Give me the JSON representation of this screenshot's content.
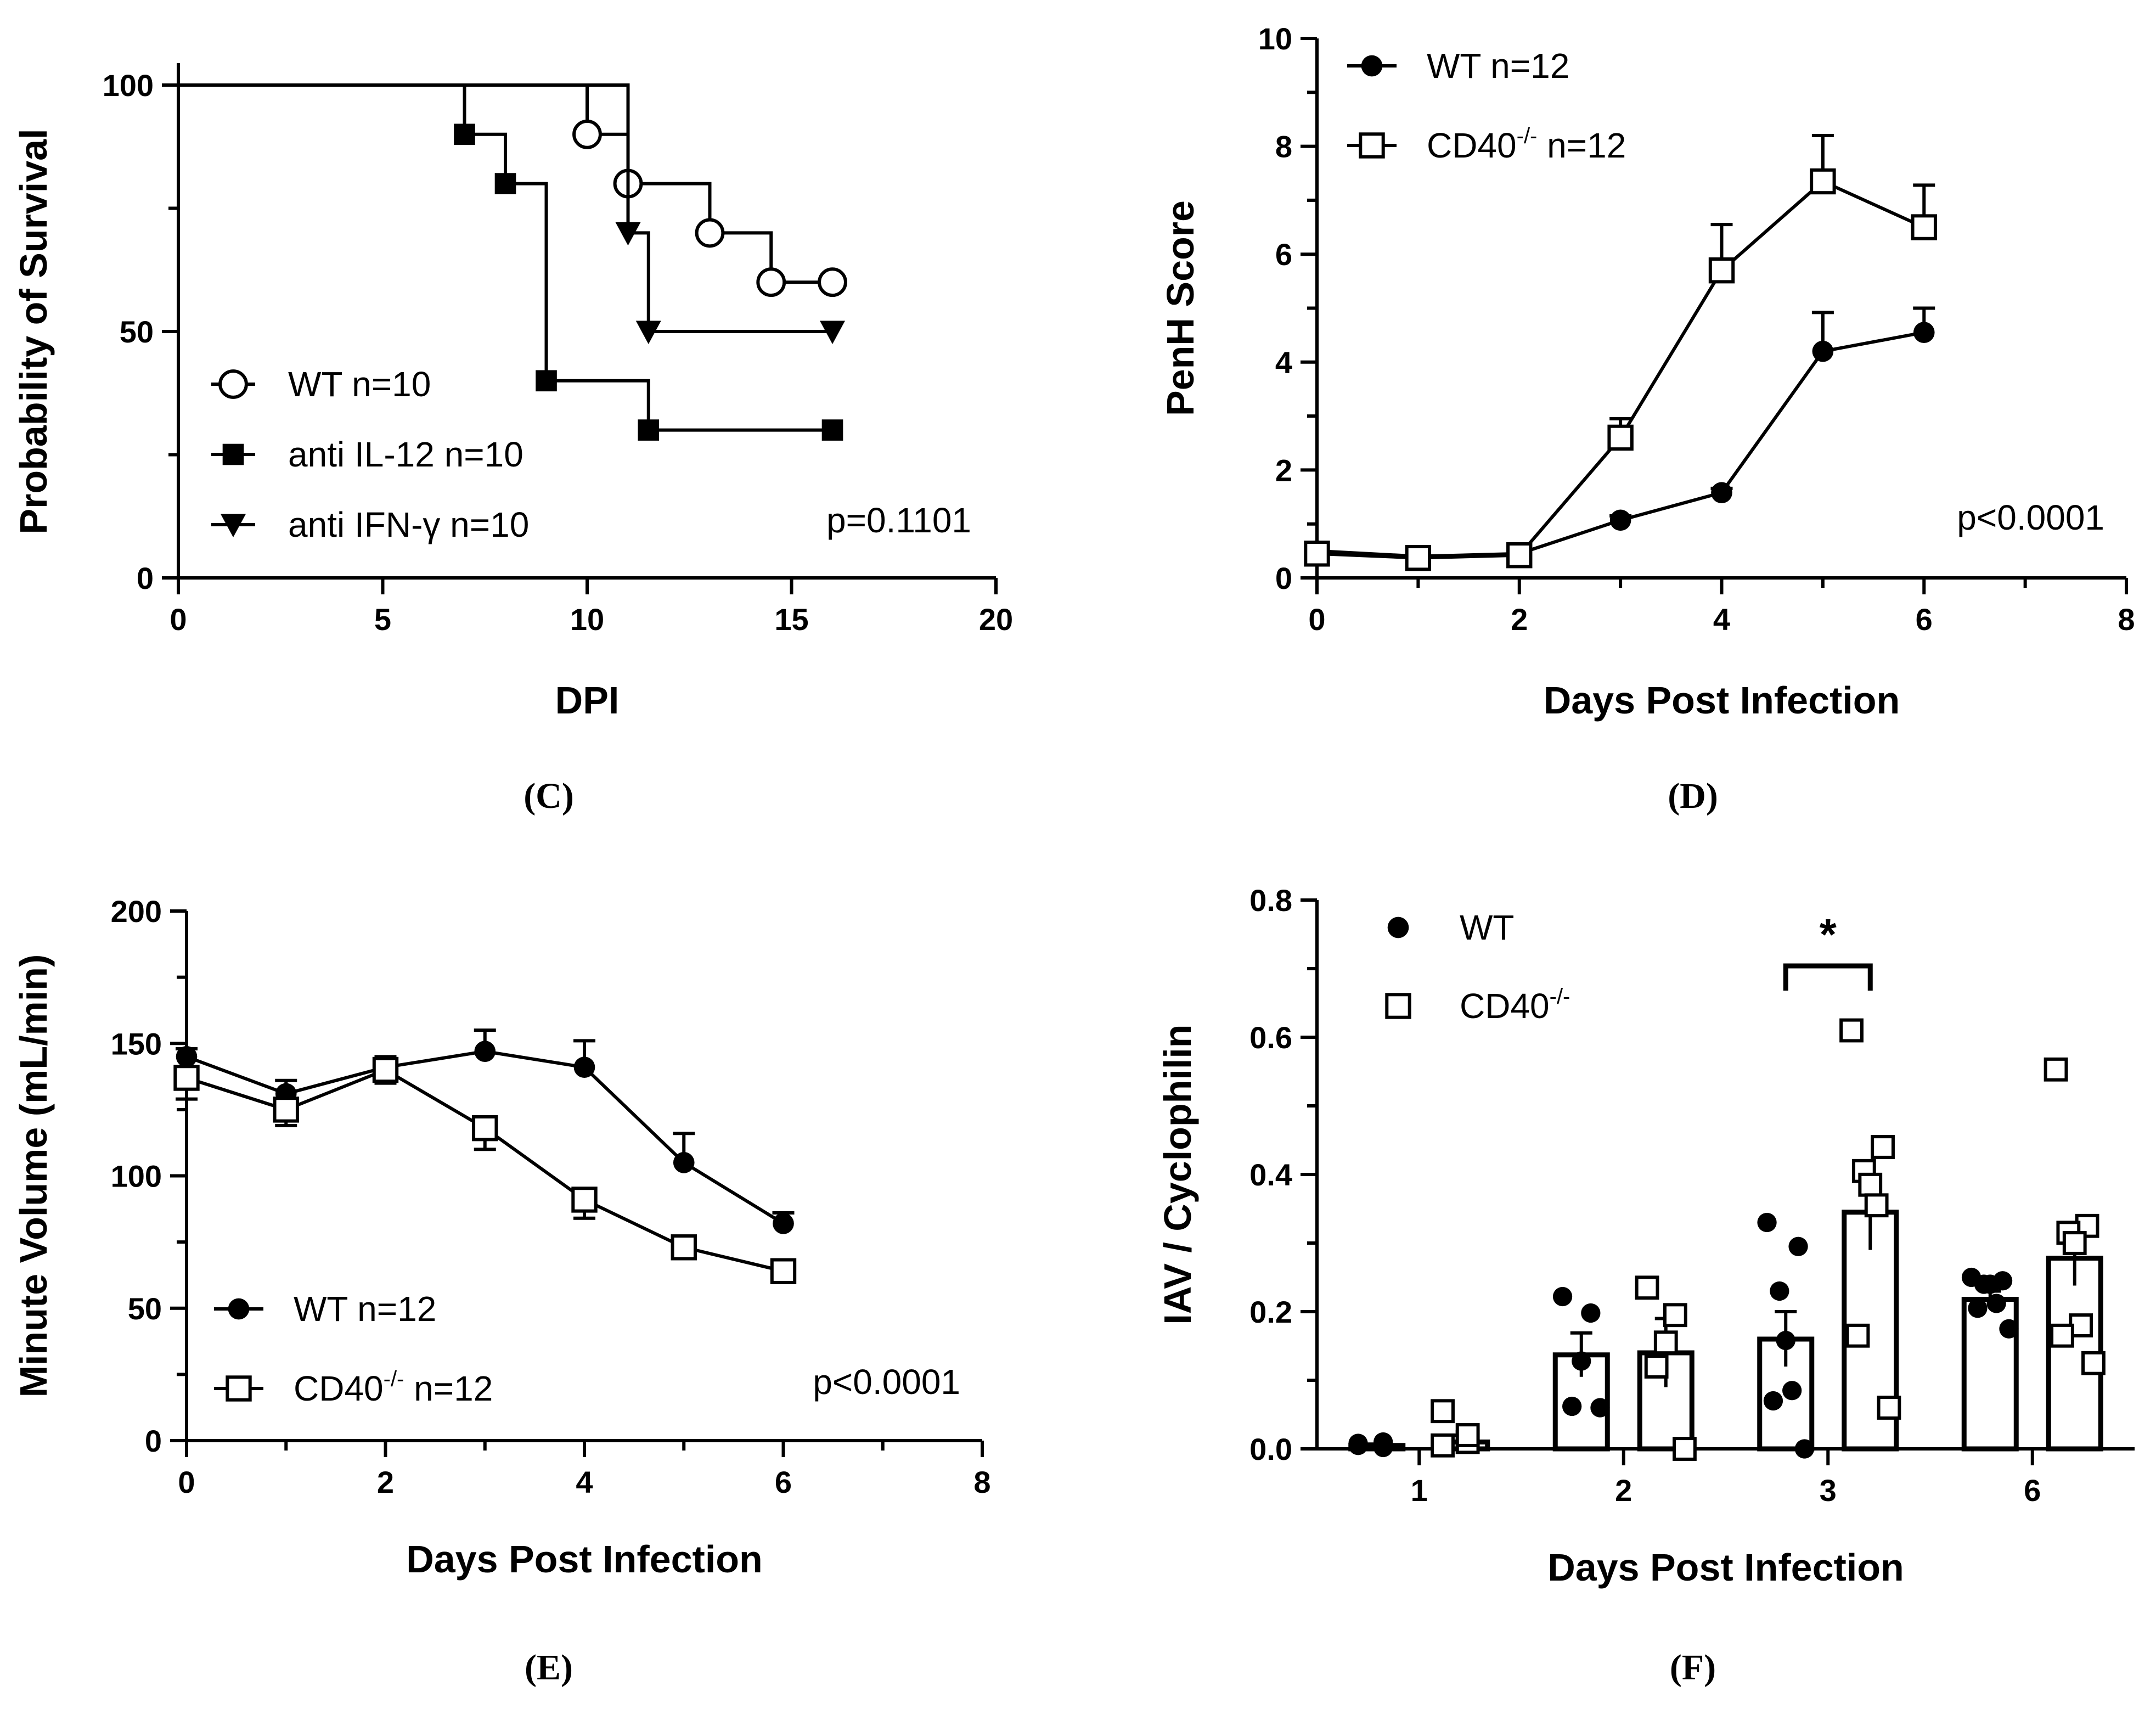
{
  "chart_data": [
    {
      "id": "C",
      "type": "line",
      "subtype": "survival-step",
      "panel_label": "(C)",
      "xlabel": "DPI",
      "ylabel": "Probability of Survival",
      "xlim": [
        0,
        20
      ],
      "ylim": [
        0,
        100
      ],
      "xticks": [
        0,
        5,
        10,
        15,
        20
      ],
      "yticks": [
        0,
        50,
        100
      ],
      "annotation": "p=0.1101",
      "legend_position": "bottom-left",
      "series": [
        {
          "name": "WT n=10",
          "marker": "open-circle",
          "steps": [
            [
              0,
              100
            ],
            [
              10,
              90
            ],
            [
              11,
              80
            ],
            [
              13,
              70
            ],
            [
              14.5,
              60
            ],
            [
              16,
              60
            ]
          ],
          "markers": [
            [
              10,
              90
            ],
            [
              11,
              80
            ],
            [
              13,
              70
            ],
            [
              14.5,
              60
            ],
            [
              16,
              60
            ]
          ]
        },
        {
          "name": "anti IL-12 n=10",
          "marker": "filled-square",
          "steps": [
            [
              0,
              100
            ],
            [
              7,
              90
            ],
            [
              8,
              80
            ],
            [
              9,
              40
            ],
            [
              11.5,
              30
            ],
            [
              16,
              30
            ]
          ],
          "markers": [
            [
              7,
              90
            ],
            [
              8,
              80
            ],
            [
              9,
              40
            ],
            [
              11.5,
              30
            ],
            [
              16,
              30
            ]
          ]
        },
        {
          "name": "anti IFN-γ n=10",
          "marker": "filled-triangle-down",
          "steps": [
            [
              0,
              100
            ],
            [
              11,
              70
            ],
            [
              11.5,
              50
            ],
            [
              16,
              50
            ]
          ],
          "markers": [
            [
              11,
              70
            ],
            [
              11.5,
              50
            ],
            [
              16,
              50
            ]
          ]
        }
      ]
    },
    {
      "id": "D",
      "type": "line",
      "panel_label": "(D)",
      "xlabel": "Days Post Infection",
      "ylabel": "PenH Score",
      "xlim": [
        0,
        8
      ],
      "ylim": [
        0,
        10
      ],
      "xticks": [
        0,
        2,
        4,
        6,
        8
      ],
      "yticks": [
        0,
        2,
        4,
        6,
        8,
        10
      ],
      "annotation": "p<0.0001",
      "legend_position": "top-left",
      "series": [
        {
          "name": "WT n=12",
          "name_main": "WT n=12",
          "name_sup": "",
          "name_tail": "",
          "marker": "filled-circle",
          "x": [
            0,
            1,
            2,
            3,
            4,
            5,
            6
          ],
          "y": [
            0.5,
            0.4,
            0.45,
            1.07,
            1.58,
            4.2,
            4.55
          ],
          "err": [
            0.05,
            0.05,
            0.05,
            0.08,
            0.08,
            0.72,
            0.45
          ]
        },
        {
          "name": "CD40-/- n=12",
          "name_main": "CD40",
          "name_sup": "-/-",
          "name_tail": " n=12",
          "marker": "open-square",
          "x": [
            0,
            1,
            2,
            3,
            4,
            5,
            6
          ],
          "y": [
            0.45,
            0.37,
            0.42,
            2.6,
            5.7,
            7.35,
            6.5
          ],
          "err": [
            0.05,
            0.05,
            0.05,
            0.35,
            0.85,
            0.85,
            0.78
          ]
        }
      ]
    },
    {
      "id": "E",
      "type": "line",
      "panel_label": "(E)",
      "xlabel": "Days Post Infection",
      "ylabel": "Minute Volume (mL/min)",
      "xlim": [
        0,
        8
      ],
      "ylim": [
        0,
        200
      ],
      "xticks": [
        0,
        2,
        4,
        6,
        8
      ],
      "yticks": [
        0,
        50,
        100,
        150,
        200
      ],
      "annotation": "p<0.0001",
      "legend_position": "bottom-left",
      "series": [
        {
          "name": "WT n=12",
          "name_main": "WT n=12",
          "name_sup": "",
          "name_tail": "",
          "marker": "filled-circle",
          "x": [
            0,
            1,
            2,
            3,
            4,
            5,
            6
          ],
          "y": [
            145,
            131,
            141,
            147,
            141,
            105,
            82
          ],
          "err": [
            3,
            5,
            4,
            8,
            10,
            11,
            4
          ]
        },
        {
          "name": "CD40-/- n=12",
          "name_main": "CD40",
          "name_sup": "-/-",
          "name_tail": " n=12",
          "marker": "open-square",
          "x": [
            0,
            1,
            2,
            3,
            4,
            5,
            6
          ],
          "y": [
            137,
            125,
            140,
            118,
            91,
            73,
            64
          ],
          "err": [
            8,
            6,
            5,
            8,
            7,
            3,
            3
          ]
        }
      ]
    },
    {
      "id": "F",
      "type": "bar",
      "subtype": "bar-with-points",
      "panel_label": "(F)",
      "xlabel": "Days Post Infection",
      "ylabel": "IAV / Cyclophilin",
      "ylim": [
        0,
        0.8
      ],
      "yticks": [
        "0.0",
        "0.2",
        "0.4",
        "0.6",
        "0.8"
      ],
      "categories": [
        "1",
        "2",
        "3",
        "6"
      ],
      "significance": {
        "label": "*",
        "category": "3"
      },
      "legend_position": "top-left",
      "series": [
        {
          "name": "WT",
          "name_main": "WT",
          "name_sup": "",
          "marker": "filled-circle",
          "values": [
            0.005,
            0.137,
            0.16,
            0.218
          ],
          "sem": [
            0.002,
            0.032,
            0.04,
            0.012
          ],
          "points": [
            [
              0.008,
              0.002,
              0.01,
              0.005
            ],
            [
              0.222,
              0.198,
              0.128,
              0.062,
              0.06
            ],
            [
              0.33,
              0.295,
              0.23,
              0.158,
              0.085,
              0.07,
              0.0
            ],
            [
              0.25,
              0.245,
              0.24,
              0.24,
              0.212,
              0.205,
              0.175
            ]
          ]
        },
        {
          "name": "CD40-/-",
          "name_main": "CD40",
          "name_sup": "-/-",
          "marker": "open-square",
          "values": [
            0.01,
            0.14,
            0.345,
            0.278
          ],
          "sem": [
            0.01,
            0.05,
            0.055,
            0.04
          ],
          "points": [
            [
              0.055,
              0.01,
              0.02,
              0.005
            ],
            [
              0.235,
              0.195,
              0.155,
              0.12,
              0.0
            ],
            [
              0.61,
              0.44,
              0.405,
              0.385,
              0.355,
              0.165,
              0.06
            ],
            [
              0.553,
              0.325,
              0.315,
              0.3,
              0.18,
              0.165,
              0.125
            ]
          ]
        }
      ]
    }
  ]
}
